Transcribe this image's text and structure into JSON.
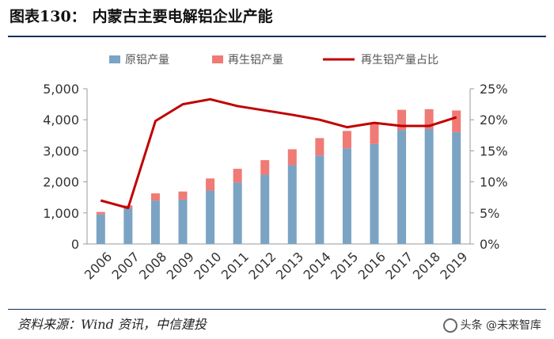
{
  "figure_label": "图表130：",
  "title": "内蒙古主要电解铝企业产能",
  "source": "资料来源：Wind 资讯，中信建投",
  "watermark": "头条 @未来智库",
  "colors": {
    "primary": "#7ba3c4",
    "recycled": "#f07a75",
    "ratio_line": "#c00000"
  },
  "chart_data": {
    "type": "bar",
    "stacked": true,
    "categories": [
      "2006",
      "2007",
      "2008",
      "2009",
      "2010",
      "2011",
      "2012",
      "2013",
      "2014",
      "2015",
      "2016",
      "2017",
      "2018",
      "2019"
    ],
    "series": [
      {
        "name": "原铝产量",
        "kind": "bar",
        "axis": "left",
        "values": [
          950,
          1150,
          1400,
          1430,
          1720,
          1980,
          2230,
          2540,
          2850,
          3080,
          3220,
          3670,
          3700,
          3600
        ]
      },
      {
        "name": "再生铝产量",
        "kind": "bar",
        "axis": "left",
        "values": [
          80,
          90,
          230,
          260,
          390,
          440,
          470,
          510,
          560,
          560,
          640,
          650,
          640,
          700
        ]
      },
      {
        "name": "再生铝产量占比",
        "kind": "line",
        "axis": "right",
        "values": [
          7.0,
          5.8,
          19.8,
          22.5,
          23.3,
          22.2,
          21.5,
          20.8,
          20.0,
          18.8,
          19.5,
          19.0,
          19.0,
          20.4
        ]
      }
    ],
    "yaxis_left": {
      "min": 0,
      "max": 5000,
      "ticks": [
        0,
        1000,
        2000,
        3000,
        4000,
        5000
      ],
      "tick_labels": [
        "0",
        "1,000",
        "2,000",
        "3,000",
        "4,000",
        "5,000"
      ]
    },
    "yaxis_right": {
      "min": 0,
      "max": 25,
      "ticks": [
        0,
        5,
        10,
        15,
        20,
        25
      ],
      "tick_labels": [
        "0%",
        "5%",
        "10%",
        "15%",
        "20%",
        "25%"
      ]
    },
    "legend_position": "top",
    "grid": false
  }
}
